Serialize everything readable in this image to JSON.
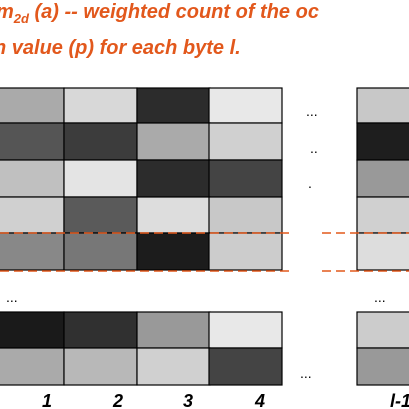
{
  "caption": {
    "symbol": "m",
    "subscript": "2d",
    "line1_rest": " (a) -- weighted count of the oc",
    "line2": "n value (p) for each byte l."
  },
  "ellipses": [
    "...",
    "..",
    ".",
    "...",
    "...",
    "..."
  ],
  "column_labels": [
    "1",
    "2",
    "3",
    "4",
    "l-1"
  ]
}
